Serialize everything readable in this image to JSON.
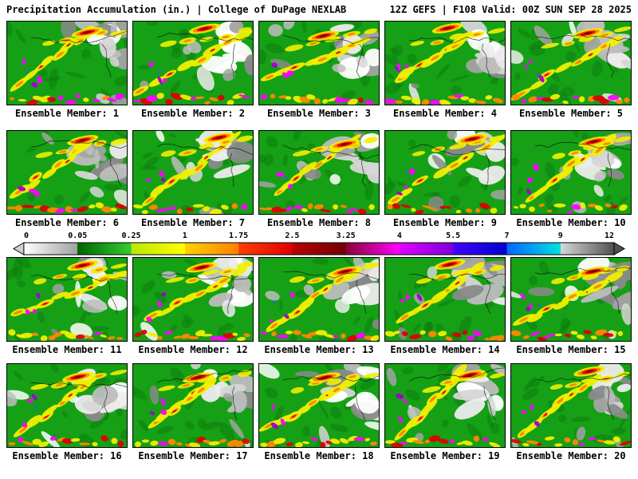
{
  "header": {
    "left": "Precipitation Accumulation (in.) | College of DuPage NEXLAB",
    "right": "12Z GEFS | F108 Valid: 00Z SUN SEP 28 2025"
  },
  "panels": [
    {
      "label": "Ensemble Member: 1"
    },
    {
      "label": "Ensemble Member: 2"
    },
    {
      "label": "Ensemble Member: 3"
    },
    {
      "label": "Ensemble Member: 4"
    },
    {
      "label": "Ensemble Member: 5"
    },
    {
      "label": "Ensemble Member: 6"
    },
    {
      "label": "Ensemble Member: 7"
    },
    {
      "label": "Ensemble Member: 8"
    },
    {
      "label": "Ensemble Member: 9"
    },
    {
      "label": "Ensemble Member: 10"
    },
    {
      "label": "Ensemble Member: 11"
    },
    {
      "label": "Ensemble Member: 12"
    },
    {
      "label": "Ensemble Member: 13"
    },
    {
      "label": "Ensemble Member: 14"
    },
    {
      "label": "Ensemble Member: 15"
    },
    {
      "label": "Ensemble Member: 16"
    },
    {
      "label": "Ensemble Member: 17"
    },
    {
      "label": "Ensemble Member: 18"
    },
    {
      "label": "Ensemble Member: 19"
    },
    {
      "label": "Ensemble Member: 20"
    }
  ],
  "colorbar": {
    "ticks": [
      "0",
      "0.05",
      "0.25",
      "1",
      "1.75",
      "2.5",
      "3.25",
      "4",
      "5.5",
      "7",
      "9",
      "12"
    ],
    "segments": [
      [
        "#ffffff",
        "#a0a0a0"
      ],
      [
        "#006600",
        "#33cc33"
      ],
      [
        "#b8e800",
        "#ffff00"
      ],
      [
        "#ffd000",
        "#ff7f00"
      ],
      [
        "#ff4000",
        "#e00000"
      ],
      [
        "#bb0000",
        "#700000"
      ],
      [
        "#8a0035",
        "#ff00ff"
      ],
      [
        "#e000ff",
        "#7d00d8"
      ],
      [
        "#4400ff",
        "#0000cc"
      ],
      [
        "#0066ff",
        "#00e0e0"
      ],
      [
        "#d8d8d8",
        "#505050"
      ]
    ],
    "left_arrow_color": "#d0d0d0",
    "right_arrow_color": "#505050"
  },
  "map_palette": {
    "base_green": "#16a016",
    "dark_green": "#0c7a0c",
    "grays": [
      "#ffffff",
      "#ececec",
      "#d6d6d6",
      "#bdbdbd",
      "#a3a3a3",
      "#8a8a8a"
    ],
    "yellow": "#f0f000",
    "orange": "#ff8800",
    "red": "#e00000",
    "dark_red": "#780000",
    "magenta": "#ff00ff",
    "purple": "#a000d0",
    "blue": "#3858ff",
    "coast": "#000000"
  }
}
